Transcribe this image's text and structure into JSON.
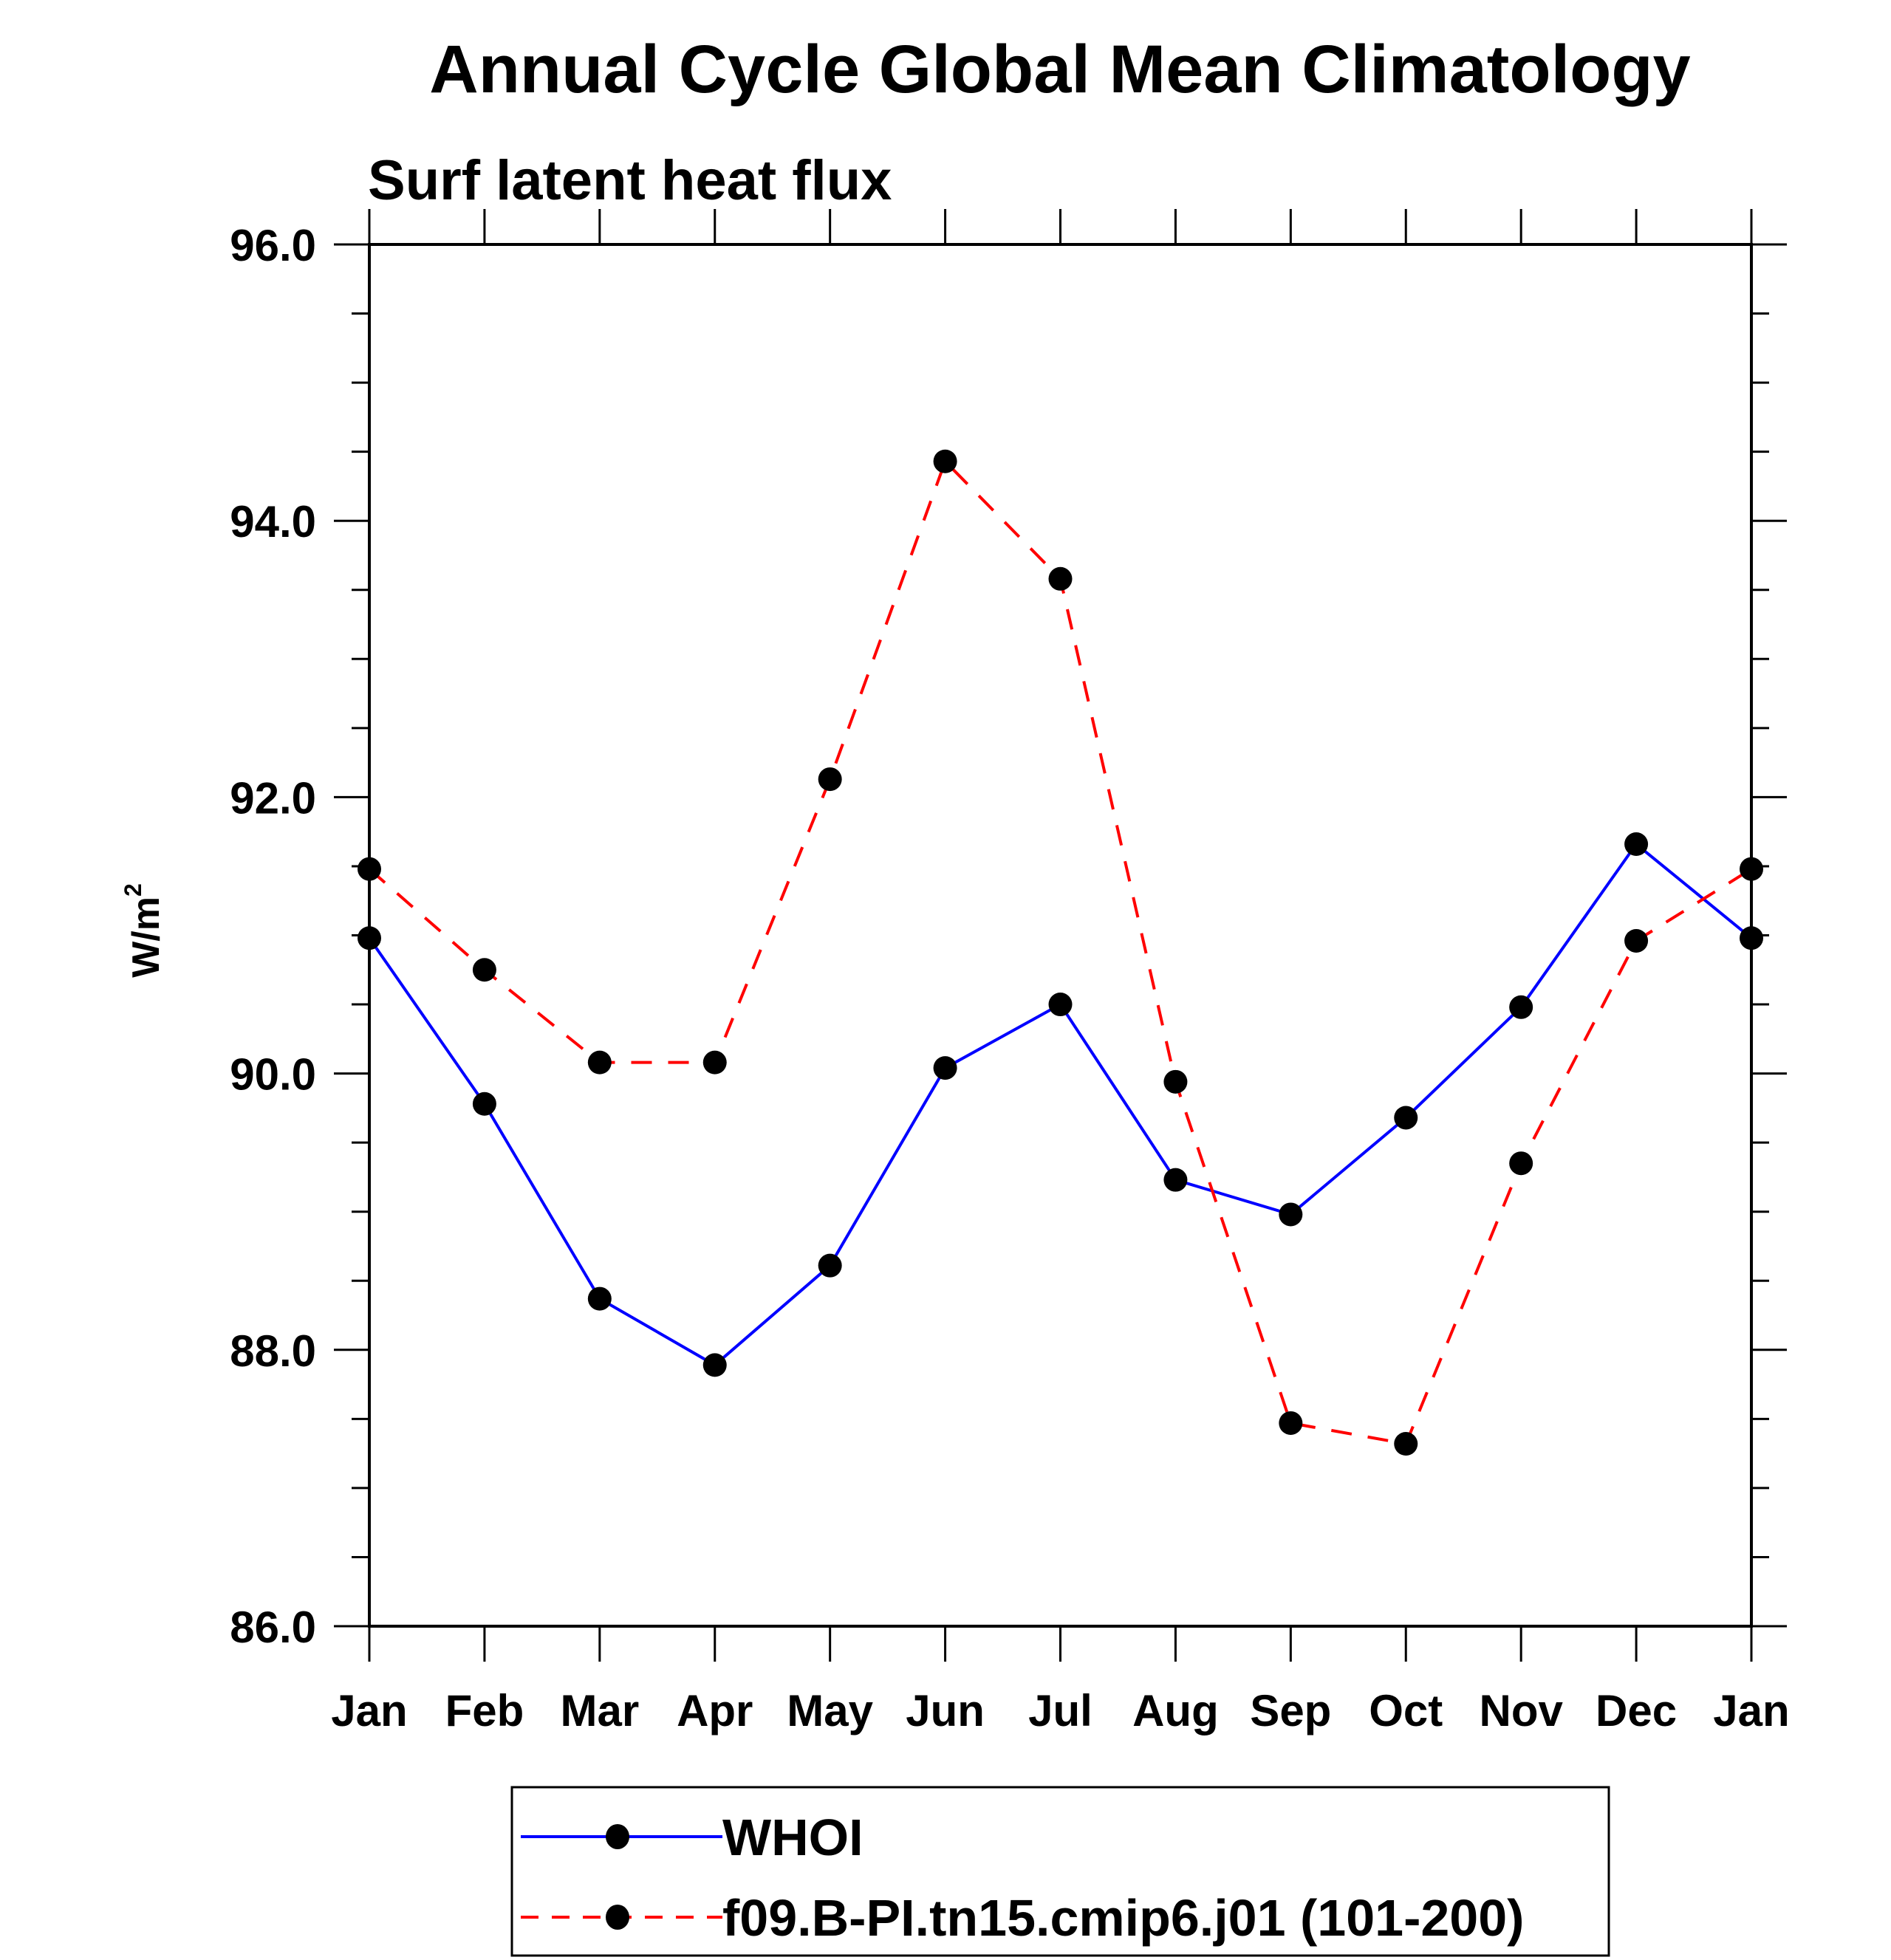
{
  "chart_data": {
    "type": "line",
    "title": "Annual Cycle Global Mean Climatology",
    "subtitle": "Surf latent heat flux",
    "xlabel": "",
    "ylabel": "W/m",
    "ylabel_superscript": "2",
    "categories": [
      "Jan",
      "Feb",
      "Mar",
      "Apr",
      "May",
      "Jun",
      "Jul",
      "Aug",
      "Sep",
      "Oct",
      "Nov",
      "Dec",
      "Jan"
    ],
    "ylim": [
      86.0,
      96.0
    ],
    "yticks": [
      86.0,
      88.0,
      90.0,
      92.0,
      94.0,
      96.0
    ],
    "ytick_labels": [
      "86.0",
      "88.0",
      "90.0",
      "92.0",
      "94.0",
      "96.0"
    ],
    "yminor_step": 0.5,
    "grid": false,
    "legend_position": "bottom-center",
    "series": [
      {
        "name": "WHOI",
        "color": "#0000ff",
        "dash": "solid",
        "marker": "filled-circle",
        "values": [
          90.98,
          89.78,
          88.37,
          87.89,
          88.61,
          90.04,
          90.5,
          89.23,
          88.98,
          89.68,
          90.48,
          91.66,
          90.98
        ]
      },
      {
        "name": "f09.B-PI.tn15.cmip6.j01 (101-200)",
        "color": "#ff0000",
        "dash": "dashed",
        "marker": "filled-circle",
        "values": [
          91.48,
          90.75,
          90.08,
          90.08,
          92.13,
          94.43,
          93.58,
          89.94,
          87.47,
          87.32,
          89.35,
          90.96,
          91.48
        ]
      }
    ]
  }
}
